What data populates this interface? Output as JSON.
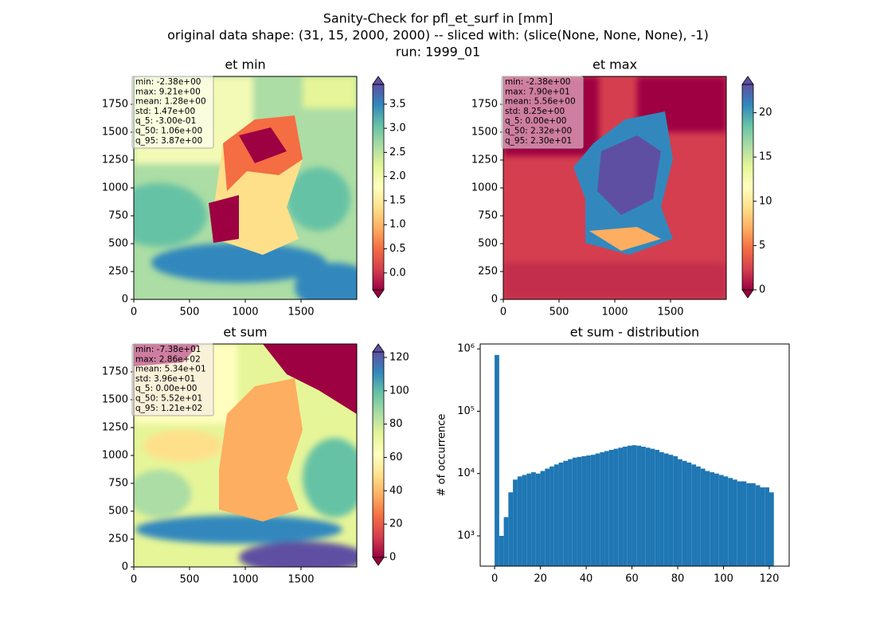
{
  "title": [
    "Sanity-Check for pfl_et_surf in [mm]",
    "original data shape: (31, 15, 2000, 2000) -- sliced with: (slice(None, None, None), -1)",
    "run: 1999_01"
  ],
  "chart_data": [
    {
      "type": "heatmap",
      "title": "et min",
      "xlim": [
        0,
        2000
      ],
      "xticks": [
        0,
        500,
        1000,
        1500
      ],
      "ylim": [
        0,
        2000
      ],
      "yticks": [
        0,
        250,
        500,
        750,
        1000,
        1250,
        1500,
        1750
      ],
      "colormap": "Spectral",
      "colorbar": {
        "lim": [
          -0.35,
          3.91
        ],
        "extend": "both",
        "ticks": [
          {
            "value": 0,
            "label": "0.0"
          },
          0.5,
          {
            "value": 1,
            "label": "1.0"
          },
          1.5,
          {
            "value": 2,
            "label": "2.0"
          },
          2.5,
          {
            "value": 3,
            "label": "3.0"
          },
          3.5
        ]
      },
      "stats": [
        "min: -2.38e+00",
        "max: 9.21e+00",
        "mean: 1.28e+00",
        "std: 1.47e+00",
        "q_5: -3.00e-01",
        "q_50: 1.06e+00",
        "q_95: 3.87e+00"
      ]
    },
    {
      "type": "heatmap",
      "title": "et max",
      "xlim": [
        0,
        2000
      ],
      "xticks": [
        0,
        500,
        1000,
        1500
      ],
      "ylim": [
        0,
        2000
      ],
      "yticks": [
        0,
        250,
        500,
        750,
        1000,
        1250,
        1500,
        1750
      ],
      "colormap": "Spectral",
      "colorbar": {
        "lim": [
          0,
          23.2
        ],
        "extend": "both",
        "ticks": [
          0,
          5,
          10,
          15,
          20
        ]
      },
      "stats": [
        "min: -2.38e+00",
        "max: 7.90e+01",
        "mean: 5.56e+00",
        "std: 8.25e+00",
        "q_5: 0.00e+00",
        "q_50: 2.32e+00",
        "q_95: 2.30e+01"
      ]
    },
    {
      "type": "heatmap",
      "title": "et sum",
      "xlim": [
        0,
        2000
      ],
      "xticks": [
        0,
        500,
        1000,
        1500
      ],
      "ylim": [
        0,
        2000
      ],
      "yticks": [
        0,
        250,
        500,
        750,
        1000,
        1250,
        1500,
        1750
      ],
      "colormap": "Spectral",
      "colorbar": {
        "lim": [
          0,
          123.3
        ],
        "extend": "both",
        "ticks": [
          0,
          20,
          40,
          60,
          80,
          100,
          120
        ]
      },
      "stats": [
        "min: -7.38e+01",
        "max: 2.86e+02",
        "mean: 5.34e+01",
        "std: 3.96e+01",
        "q_5: 0.00e+00",
        "q_50: 5.52e+01",
        "q_95: 1.21e+02"
      ]
    },
    {
      "type": "histogram",
      "title": "et sum - distribution",
      "ylabel": "# of occurrence",
      "color": "#1f77b4",
      "log_y": true,
      "xlim": [
        -6.3,
        128.7
      ],
      "xticks": [
        0,
        20,
        40,
        60,
        80,
        100,
        120
      ],
      "ylim": [
        327,
        1200000
      ],
      "yticks": [
        {
          "value": 1000,
          "label": "10³"
        },
        {
          "value": 10000,
          "label": "10⁴"
        },
        {
          "value": 100000,
          "label": "10⁵"
        },
        {
          "value": 1000000,
          "label": "10⁶"
        }
      ],
      "bins": [
        0,
        2,
        4,
        6,
        8,
        10,
        12,
        14,
        16,
        18,
        20,
        22,
        24,
        26,
        28,
        30,
        32,
        34,
        36,
        38,
        40,
        42,
        44,
        46,
        48,
        50,
        52,
        54,
        56,
        58,
        60,
        62,
        64,
        66,
        68,
        70,
        72,
        74,
        76,
        78,
        80,
        82,
        84,
        86,
        88,
        90,
        92,
        94,
        96,
        98,
        100,
        102,
        104,
        106,
        108,
        110,
        112,
        114,
        116,
        118,
        120,
        122
      ],
      "counts": [
        800000,
        1000,
        2000,
        5000,
        8000,
        9000,
        9500,
        10000,
        10500,
        10000,
        11000,
        12000,
        13000,
        14000,
        15000,
        16000,
        17000,
        18000,
        18500,
        19000,
        19500,
        20000,
        21000,
        22000,
        23000,
        24000,
        25000,
        26000,
        27000,
        28000,
        28500,
        28000,
        27000,
        26000,
        25000,
        24000,
        22000,
        21000,
        20000,
        19000,
        17000,
        16000,
        15000,
        14000,
        13000,
        12000,
        11000,
        10500,
        10000,
        9500,
        9000,
        8500,
        8000,
        7500,
        7500,
        7000,
        7000,
        6500,
        6000,
        6000,
        5000
      ]
    }
  ]
}
